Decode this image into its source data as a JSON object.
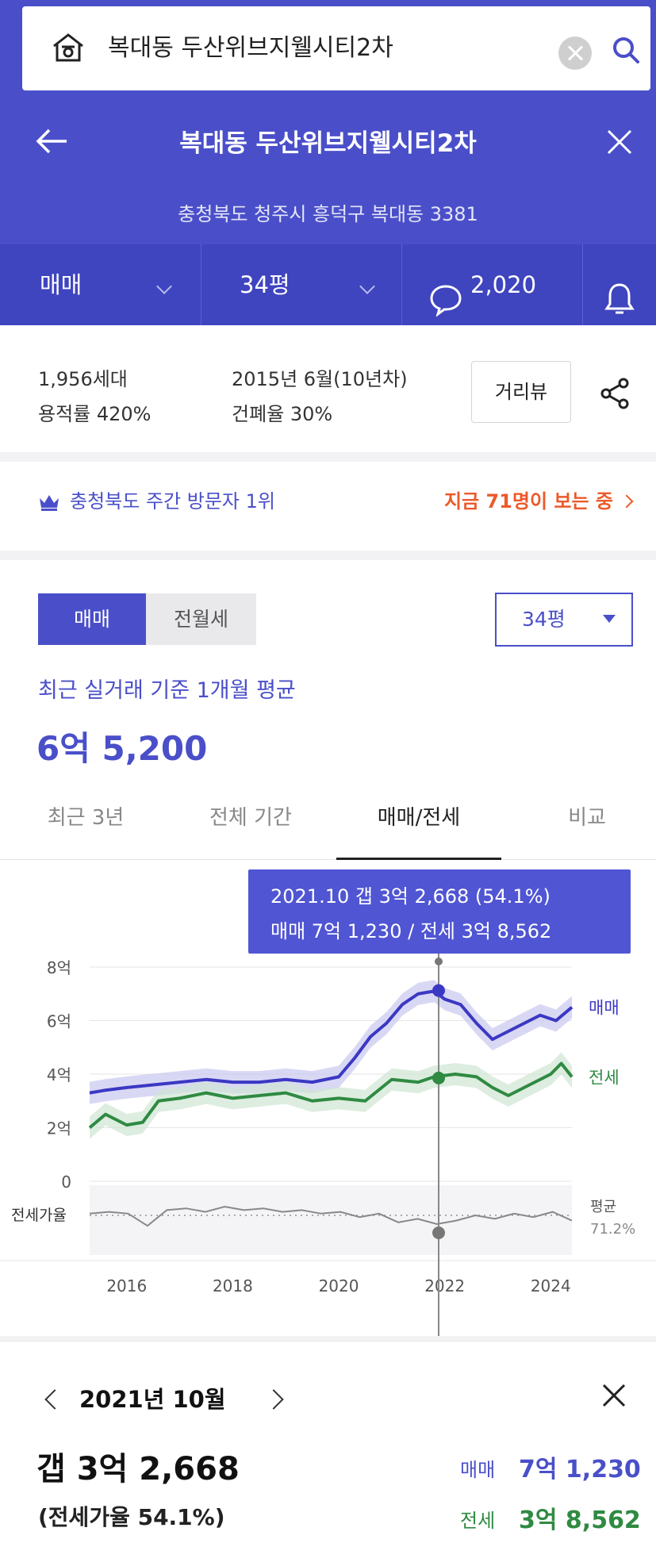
{
  "search": {
    "query": "복대동 두산위브지웰시티2차"
  },
  "header": {
    "title": "복대동 두산위브지웰시티2차",
    "address": "충청북도 청주시 흥덕구 복대동 3381"
  },
  "filterbar": {
    "trade_type": "매매",
    "size": "34평",
    "comment_count": "2,020"
  },
  "info": {
    "households": "1,956세대",
    "floor_area_ratio": "용적률 420%",
    "built": "2015년 6월(10년차)",
    "coverage_ratio": "건폐율 30%",
    "streetview_label": "거리뷰"
  },
  "visitors": {
    "rank_text": "충청북도 주간 방문자 1위",
    "live_text": "지금 71명이 보는 중"
  },
  "price": {
    "seg_sale": "매매",
    "seg_rent": "전월세",
    "size_select": "34평",
    "avg_label": "최근 실거래 기준 1개월 평균",
    "avg_value": "6억 5,200"
  },
  "tabs": [
    "최근 3년",
    "전체 기간",
    "매매/전세",
    "비교"
  ],
  "tooltip": {
    "line1": "2021.10  갭 3억 2,668 (54.1%)",
    "line2": "매매 7억 1,230 / 전세 3억 8,562"
  },
  "chart_data": {
    "type": "line",
    "y_ticks": [
      "8억",
      "6억",
      "4억",
      "2억",
      "0"
    ],
    "ylim": [
      0,
      8
    ],
    "x_ticks": [
      "2016",
      "2018",
      "2020",
      "2022",
      "2024"
    ],
    "xlim": [
      2015.3,
      2024.4
    ],
    "ratio_label": "전세가율",
    "ratio_avg_label": "평균",
    "ratio_avg_value": "71.2%",
    "colors": {
      "sale": "#3b38c4",
      "rent": "#2f8a42",
      "ratio": "#888888"
    },
    "series": [
      {
        "name": "매매",
        "x": [
          2015.3,
          2015.6,
          2016.0,
          2016.5,
          2017.0,
          2017.5,
          2018.0,
          2018.5,
          2019.0,
          2019.5,
          2020.0,
          2020.3,
          2020.6,
          2020.9,
          2021.2,
          2021.5,
          2021.8,
          2022.0,
          2022.3,
          2022.6,
          2022.9,
          2023.2,
          2023.5,
          2023.8,
          2024.1,
          2024.4
        ],
        "values": [
          3.3,
          3.4,
          3.5,
          3.6,
          3.7,
          3.8,
          3.7,
          3.7,
          3.8,
          3.7,
          3.9,
          4.6,
          5.4,
          5.9,
          6.6,
          7.0,
          7.1,
          6.8,
          6.6,
          5.9,
          5.3,
          5.6,
          5.9,
          6.2,
          6.0,
          6.5
        ]
      },
      {
        "name": "전세",
        "x": [
          2015.3,
          2015.6,
          2016.0,
          2016.3,
          2016.6,
          2017.0,
          2017.5,
          2018.0,
          2018.5,
          2019.0,
          2019.5,
          2020.0,
          2020.5,
          2021.0,
          2021.5,
          2021.8,
          2022.2,
          2022.6,
          2022.9,
          2023.2,
          2023.6,
          2024.0,
          2024.2,
          2024.4
        ],
        "values": [
          2.0,
          2.5,
          2.1,
          2.2,
          3.0,
          3.1,
          3.3,
          3.1,
          3.2,
          3.3,
          3.0,
          3.1,
          3.0,
          3.8,
          3.7,
          3.9,
          4.0,
          3.9,
          3.5,
          3.2,
          3.6,
          4.0,
          4.4,
          3.9
        ]
      }
    ],
    "highlight": {
      "x": 2021.8,
      "sale": 7.123,
      "rent": 3.8562
    }
  },
  "detail": {
    "month": "2021년 10월",
    "gap": "갭 3억 2,668",
    "ratio": "(전세가율 54.1%)",
    "sale_label": "매매",
    "sale_value": "7억 1,230",
    "rent_label": "전세",
    "rent_value": "3억 8,562"
  }
}
